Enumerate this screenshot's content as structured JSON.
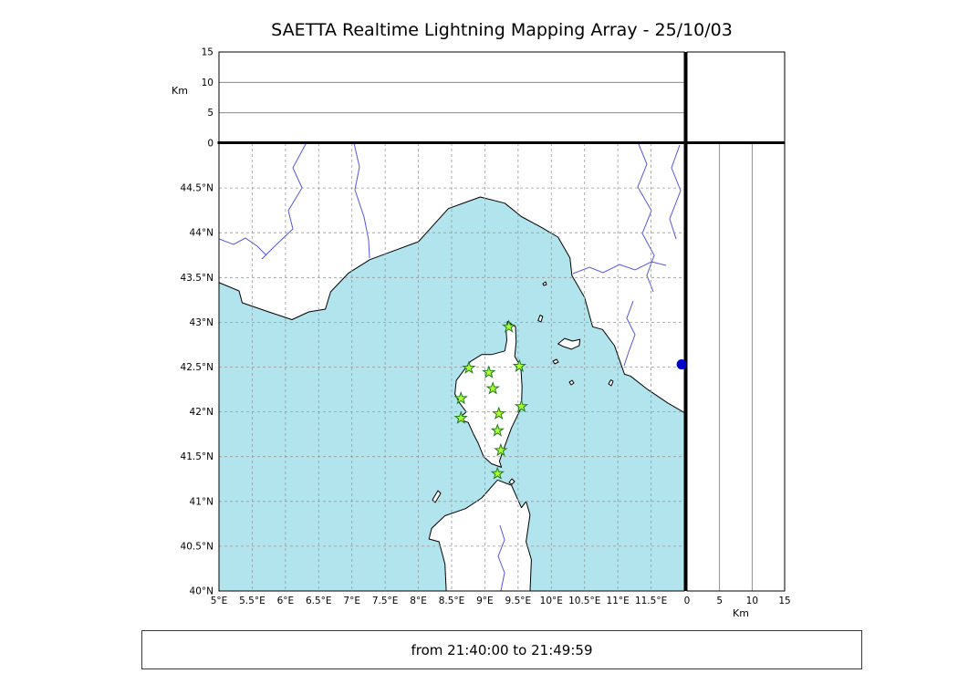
{
  "title": "SAETTA Realtime Lightning Mapping Array - 25/10/03",
  "footer": {
    "time_range": "from 21:40:00 to 21:49:59"
  },
  "map_panel": {
    "lon_tick_labels": [
      "5°E",
      "5.5°E",
      "6°E",
      "6.5°E",
      "7°E",
      "7.5°E",
      "8°E",
      "8.5°E",
      "9°E",
      "9.5°E",
      "10°E",
      "10.5°E",
      "11°E",
      "11.5°E"
    ],
    "lon_tick_values": [
      5,
      5.5,
      6,
      6.5,
      7,
      7.5,
      8,
      8.5,
      9,
      9.5,
      10,
      10.5,
      11,
      11.5
    ],
    "lat_tick_labels": [
      "40°N",
      "40.5°N",
      "41°N",
      "41.5°N",
      "42°N",
      "42.5°N",
      "43°N",
      "43.5°N",
      "44°N",
      "44.5°N"
    ],
    "lat_tick_values": [
      40,
      40.5,
      41,
      41.5,
      42,
      42.5,
      43,
      43.5,
      44,
      44.5
    ],
    "lon_range": [
      5,
      12
    ],
    "lat_range": [
      40,
      45
    ],
    "grid_step_deg": 0.5
  },
  "altitude_panel_top": {
    "unit_label": "Km",
    "tick_labels": [
      "0",
      "5",
      "10",
      "15"
    ],
    "tick_values": [
      0,
      5,
      10,
      15
    ],
    "range_km": [
      0,
      15
    ],
    "grid_km": [
      5,
      10
    ]
  },
  "altitude_panel_right": {
    "unit_label": "Km",
    "tick_labels": [
      "0",
      "5",
      "10",
      "15"
    ],
    "tick_values": [
      0,
      5,
      10,
      15
    ],
    "range_km": [
      0,
      15
    ],
    "grid_km": [
      5,
      10
    ]
  },
  "stations": [
    {
      "lon": 9.36,
      "lat": 42.95
    },
    {
      "lon": 8.76,
      "lat": 42.49
    },
    {
      "lon": 9.06,
      "lat": 42.44
    },
    {
      "lon": 9.52,
      "lat": 42.51
    },
    {
      "lon": 9.12,
      "lat": 42.26
    },
    {
      "lon": 8.64,
      "lat": 42.15
    },
    {
      "lon": 9.55,
      "lat": 42.06
    },
    {
      "lon": 8.64,
      "lat": 41.93
    },
    {
      "lon": 9.21,
      "lat": 41.98
    },
    {
      "lon": 9.19,
      "lat": 41.79
    },
    {
      "lon": 9.24,
      "lat": 41.57
    },
    {
      "lon": 9.19,
      "lat": 41.31
    }
  ],
  "source_point": {
    "lon": 11.96,
    "lat": 42.53
  },
  "colors": {
    "sea": "#b2e4ee",
    "land": "#ffffff",
    "coast": "#000000",
    "river": "#5555dd",
    "grid": "#999999",
    "station_fill": "#adff2f",
    "station_stroke": "#1f7a1f",
    "source_point": "#0000cc"
  }
}
